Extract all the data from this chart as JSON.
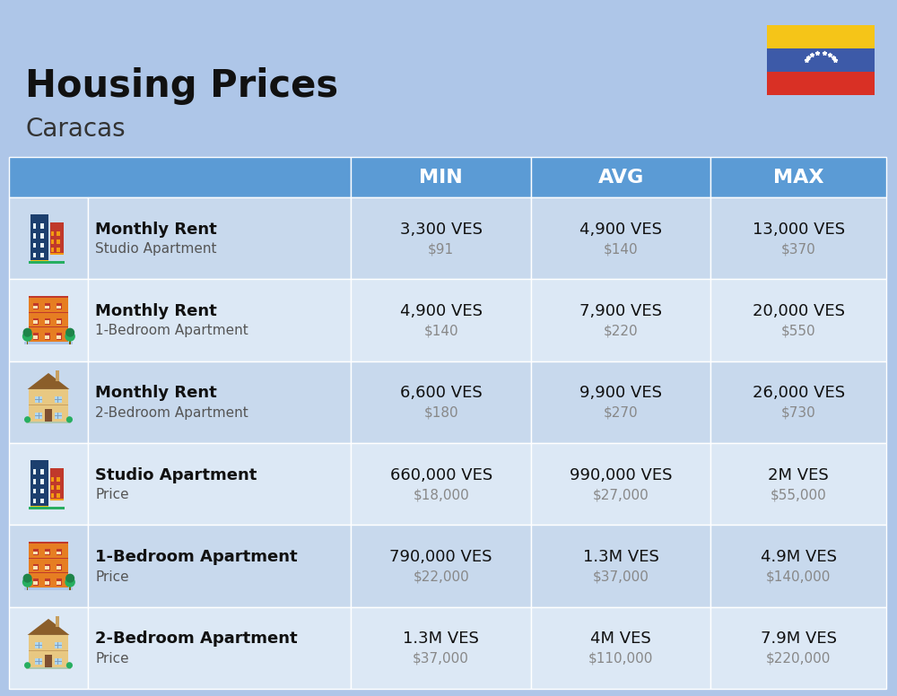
{
  "title": "Housing Prices",
  "subtitle": "Caracas",
  "background_color": "#aec6e8",
  "header_bg_color": "#5b9bd5",
  "header_text_color": "#ffffff",
  "row_bg_colors": [
    "#c8d9ed",
    "#dce8f5"
  ],
  "col_headers": [
    "MIN",
    "AVG",
    "MAX"
  ],
  "rows": [
    {
      "bold_label": "Monthly Rent",
      "sub_label": "Studio Apartment",
      "min_ves": "3,300 VES",
      "min_usd": "$91",
      "avg_ves": "4,900 VES",
      "avg_usd": "$140",
      "max_ves": "13,000 VES",
      "max_usd": "$370",
      "icon_type": "studio_blue"
    },
    {
      "bold_label": "Monthly Rent",
      "sub_label": "1-Bedroom Apartment",
      "min_ves": "4,900 VES",
      "min_usd": "$140",
      "avg_ves": "7,900 VES",
      "avg_usd": "$220",
      "max_ves": "20,000 VES",
      "max_usd": "$550",
      "icon_type": "one_bed_orange"
    },
    {
      "bold_label": "Monthly Rent",
      "sub_label": "2-Bedroom Apartment",
      "min_ves": "6,600 VES",
      "min_usd": "$180",
      "avg_ves": "9,900 VES",
      "avg_usd": "$270",
      "max_ves": "26,000 VES",
      "max_usd": "$730",
      "icon_type": "two_bed_tan"
    },
    {
      "bold_label": "Studio Apartment",
      "sub_label": "Price",
      "min_ves": "660,000 VES",
      "min_usd": "$18,000",
      "avg_ves": "990,000 VES",
      "avg_usd": "$27,000",
      "max_ves": "2M VES",
      "max_usd": "$55,000",
      "icon_type": "studio_blue"
    },
    {
      "bold_label": "1-Bedroom Apartment",
      "sub_label": "Price",
      "min_ves": "790,000 VES",
      "min_usd": "$22,000",
      "avg_ves": "1.3M VES",
      "avg_usd": "$37,000",
      "max_ves": "4.9M VES",
      "max_usd": "$140,000",
      "icon_type": "one_bed_orange"
    },
    {
      "bold_label": "2-Bedroom Apartment",
      "sub_label": "Price",
      "min_ves": "1.3M VES",
      "min_usd": "$37,000",
      "avg_ves": "4M VES",
      "avg_usd": "$110,000",
      "max_ves": "7.9M VES",
      "max_usd": "$220,000",
      "icon_type": "two_bed_tan"
    }
  ],
  "flag_colors": [
    "#f5c518",
    "#3d5aa8",
    "#d93025"
  ],
  "flag_star_color": "#ffffff"
}
